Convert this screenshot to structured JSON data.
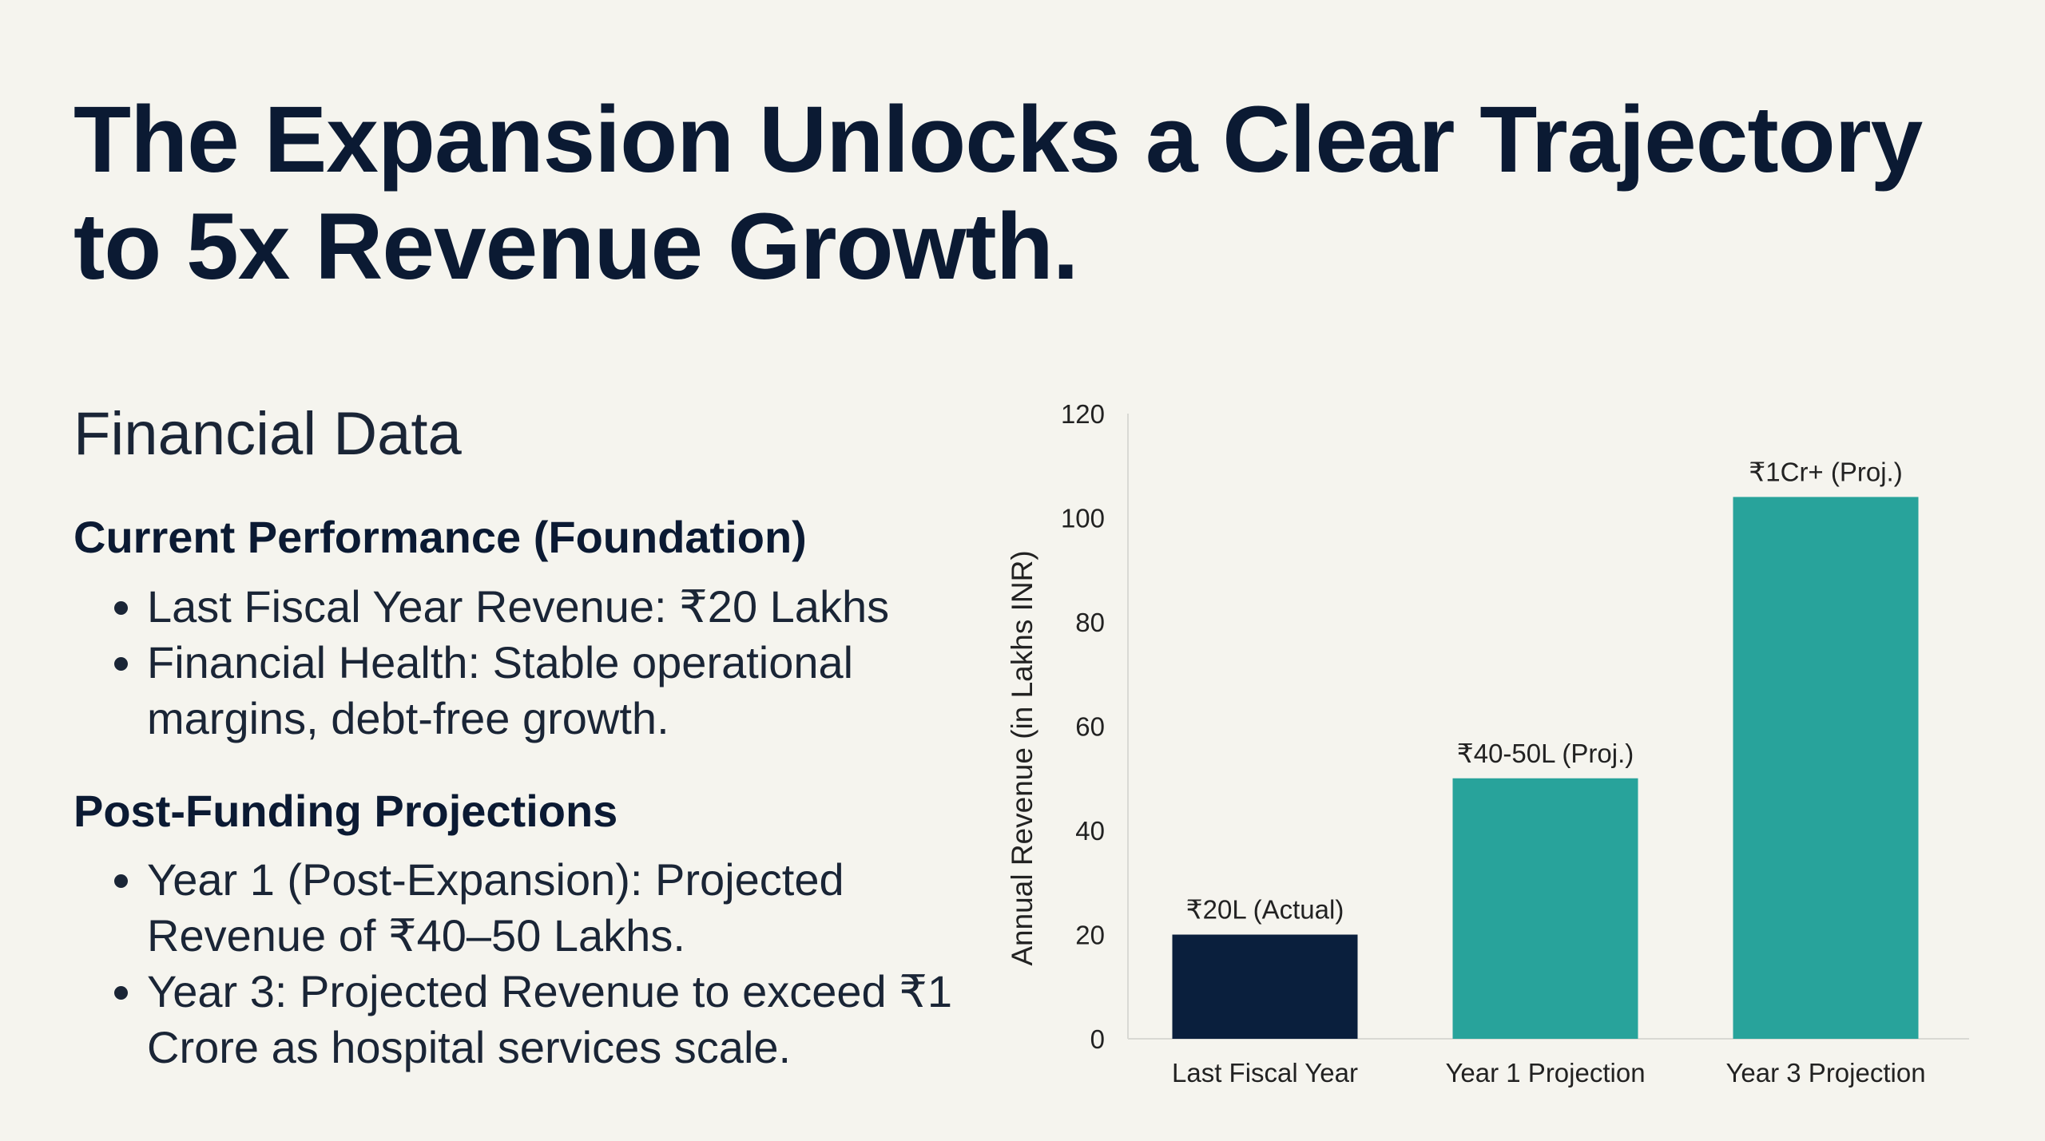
{
  "title": "The Expansion Unlocks a Clear Trajectory to 5x Revenue Growth.",
  "section_title": "Financial Data",
  "current": {
    "heading": "Current Performance (Foundation)",
    "bullets": [
      "Last Fiscal Year Revenue: ₹20 Lakhs",
      "Financial Health: Stable operational margins, debt-free growth."
    ]
  },
  "projections": {
    "heading": "Post-Funding Projections",
    "bullets": [
      "Year 1 (Post-Expansion): Projected Revenue of ₹40–50 Lakhs.",
      "Year 3: Projected Revenue to exceed ₹1 Crore as hospital services scale."
    ]
  },
  "chart_data": {
    "type": "bar",
    "title": "",
    "xlabel": "",
    "ylabel": "Annual Revenue (in Lakhs INR)",
    "ylim": [
      0,
      120
    ],
    "yticks": [
      0,
      20,
      40,
      60,
      80,
      100,
      120
    ],
    "grid": false,
    "categories": [
      "Last Fiscal Year",
      "Year 1 Projection",
      "Year 3 Projection"
    ],
    "values": [
      20,
      50,
      104
    ],
    "data_labels": [
      "₹20L (Actual)",
      "₹40-50L (Proj.)",
      "₹1Cr+ (Proj.)"
    ],
    "colors": [
      "#0a1f3d",
      "#28a39b",
      "#28a39b"
    ],
    "axis_color": "#d9d9d4"
  }
}
